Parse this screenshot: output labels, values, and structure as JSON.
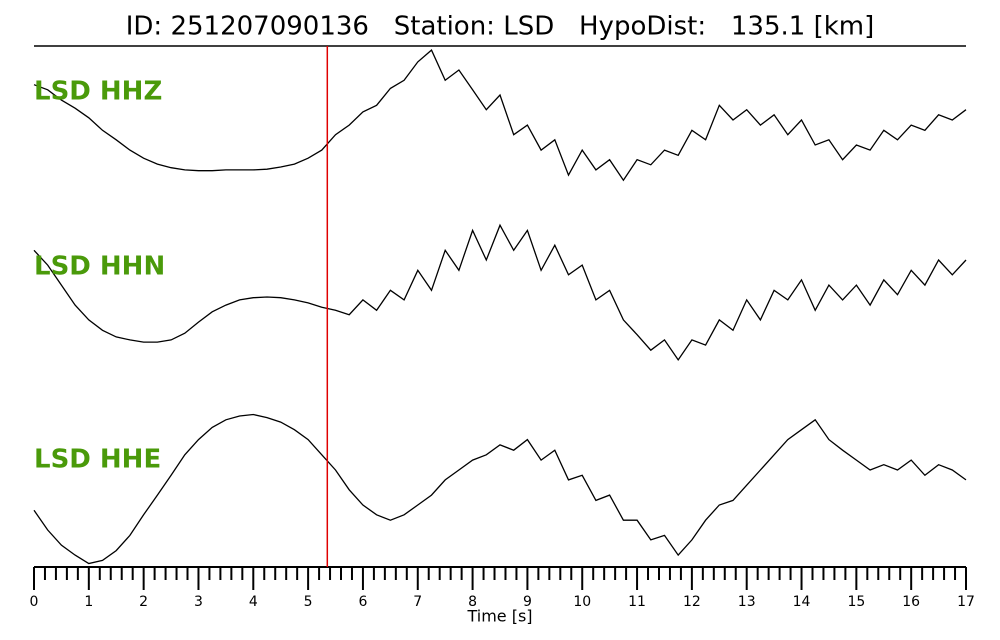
{
  "chart_data": {
    "type": "seismogram",
    "title": "ID: 251207090136   Station: LSD   HypoDist:   135.1 [km]",
    "xlabel": "Time [s]",
    "x": [
      0,
      0.25,
      0.5,
      0.75,
      1,
      1.25,
      1.5,
      1.75,
      2,
      2.25,
      2.5,
      2.75,
      3,
      3.25,
      3.5,
      3.75,
      4,
      4.25,
      4.5,
      4.75,
      5,
      5.25,
      5.5,
      5.75,
      6,
      6.25,
      6.5,
      6.75,
      7,
      7.25,
      7.5,
      7.75,
      8,
      8.25,
      8.5,
      8.75,
      9,
      9.25,
      9.5,
      9.75,
      10,
      10.25,
      10.5,
      10.75,
      11,
      11.25,
      11.5,
      11.75,
      12,
      12.25,
      12.5,
      12.75,
      13,
      13.25,
      13.5,
      13.75,
      14,
      14.25,
      14.5,
      14.75,
      15,
      15.25,
      15.5,
      15.75,
      16,
      16.25,
      16.5,
      16.75,
      17
    ],
    "series": [
      {
        "name": "LSD HHZ",
        "color": "#000000",
        "values": [
          46,
          39,
          25,
          14,
          1,
          -16,
          -29,
          -43,
          -54,
          -62,
          -67,
          -70,
          -71,
          -71,
          -70,
          -70,
          -70,
          -69,
          -66,
          -62,
          -54,
          -43,
          -22,
          -9,
          9,
          18,
          41,
          52,
          77,
          93,
          52,
          66,
          39,
          12,
          32,
          -22,
          -9,
          -43,
          -29,
          -77,
          -43,
          -70,
          -56,
          -84,
          -56,
          -63,
          -43,
          -50,
          -16,
          -29,
          18,
          -2,
          12,
          -9,
          5,
          -22,
          -2,
          -36,
          -29,
          -56,
          -36,
          -43,
          -16,
          -29,
          -9,
          -16,
          5,
          -2,
          12
        ]
      },
      {
        "name": "LSD HHN",
        "color": "#000000",
        "values": [
          59,
          39,
          12,
          -15,
          -35,
          -49,
          -58,
          -62,
          -65,
          -65,
          -62,
          -53,
          -38,
          -24,
          -15,
          -8,
          -5,
          -4,
          -5,
          -8,
          -12,
          -18,
          -22,
          -28,
          -8,
          -22,
          5,
          -8,
          32,
          5,
          59,
          32,
          86,
          46,
          93,
          59,
          86,
          32,
          66,
          26,
          39,
          -8,
          5,
          -35,
          -55,
          -76,
          -62,
          -89,
          -62,
          -69,
          -35,
          -49,
          -8,
          -35,
          5,
          -8,
          19,
          -22,
          12,
          -8,
          12,
          -15,
          19,
          -1,
          32,
          12,
          46,
          26,
          46
        ]
      },
      {
        "name": "LSD HHE",
        "color": "#000000",
        "values": [
          -28,
          -54,
          -74,
          -87,
          -98,
          -94,
          -81,
          -61,
          -34,
          -8,
          18,
          45,
          65,
          81,
          91,
          96,
          98,
          94,
          88,
          78,
          65,
          45,
          25,
          -1,
          -21,
          -34,
          -41,
          -34,
          -21,
          -8,
          12,
          25,
          38,
          45,
          58,
          51,
          65,
          38,
          51,
          12,
          18,
          -15,
          -8,
          -41,
          -41,
          -67,
          -61,
          -87,
          -67,
          -41,
          -21,
          -15,
          5,
          25,
          45,
          65,
          78,
          91,
          65,
          51,
          38,
          25,
          32,
          25,
          38,
          18,
          32,
          25,
          12
        ]
      }
    ],
    "label_color": "#4a9a0a",
    "ylim": [
      -100,
      100
    ],
    "xlim": [
      0,
      17
    ],
    "xticks": [
      0,
      1,
      2,
      3,
      4,
      5,
      6,
      7,
      8,
      9,
      10,
      11,
      12,
      13,
      14,
      15,
      16,
      17
    ],
    "xminorticks": [
      0.2,
      0.4,
      0.6,
      0.8,
      1.2,
      1.4,
      1.6,
      1.8,
      2.2,
      2.4,
      2.6,
      2.8,
      3.2,
      3.4,
      3.6,
      3.8,
      4.2,
      4.4,
      4.6,
      4.8,
      5.2,
      5.4,
      5.6,
      5.8,
      6.2,
      6.4,
      6.6,
      6.8,
      7.2,
      7.4,
      7.6,
      7.8,
      8.2,
      8.4,
      8.6,
      8.8,
      9.2,
      9.4,
      9.6,
      9.8,
      10.2,
      10.4,
      10.6,
      10.8,
      11.2,
      11.4,
      11.6,
      11.8,
      12.2,
      12.4,
      12.6,
      12.8,
      13.2,
      13.4,
      13.6,
      13.8,
      14.2,
      14.4,
      14.6,
      14.8,
      15.2,
      15.4,
      15.6,
      15.8,
      16.2,
      16.4,
      16.6,
      16.8
    ],
    "pick": 5.35,
    "pick_color": "#e00000"
  }
}
